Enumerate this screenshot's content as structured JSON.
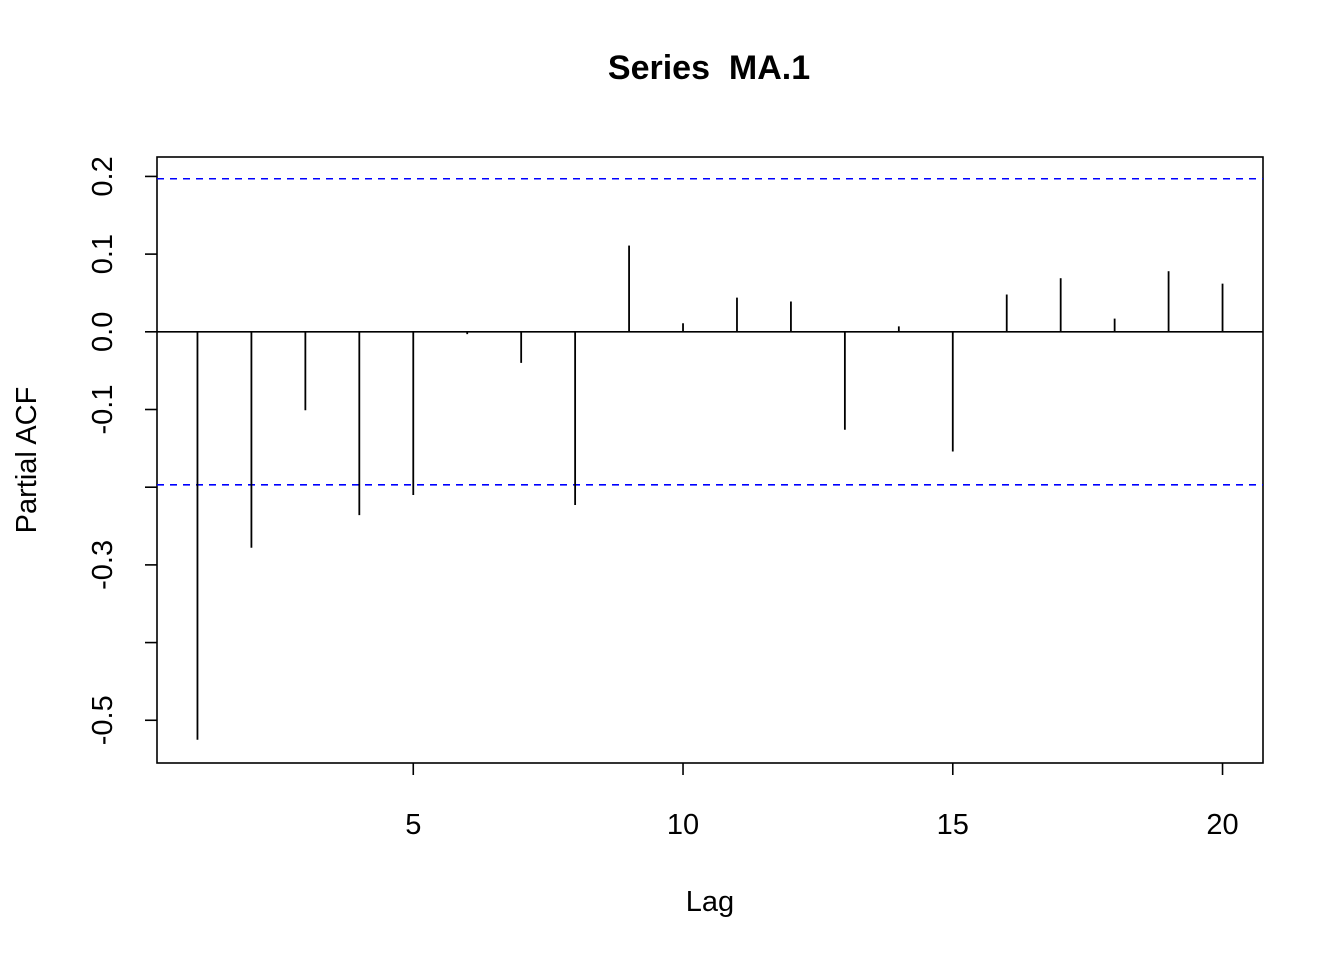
{
  "chart_data": {
    "type": "bar",
    "title": "Series  MA.1",
    "xlabel": "Lag",
    "ylabel": "Partial ACF",
    "x": [
      1,
      2,
      3,
      4,
      5,
      6,
      7,
      8,
      9,
      10,
      11,
      12,
      13,
      14,
      15,
      16,
      17,
      18,
      19,
      20
    ],
    "values": [
      -0.525,
      -0.278,
      -0.101,
      -0.236,
      -0.21,
      -0.003,
      -0.04,
      -0.223,
      0.111,
      0.011,
      0.044,
      0.039,
      -0.126,
      0.007,
      -0.154,
      0.048,
      0.069,
      0.017,
      0.078,
      0.062
    ],
    "confidence_bounds": [
      0.197,
      -0.197
    ],
    "xlim": [
      0.25,
      20.75
    ],
    "ylim": [
      -0.555,
      0.225
    ],
    "x_ticks": [
      5,
      10,
      15,
      20
    ],
    "y_ticks": [
      0.2,
      0.1,
      0.0,
      -0.1,
      -0.2,
      -0.3,
      -0.4,
      -0.5
    ],
    "y_tick_labels": [
      "0.2",
      "0.1",
      "0.0",
      "-0.1",
      "",
      "-0.3",
      "",
      "-0.5"
    ],
    "bound_color": "#0000ff",
    "bar_color": "#000000",
    "grid": false
  }
}
